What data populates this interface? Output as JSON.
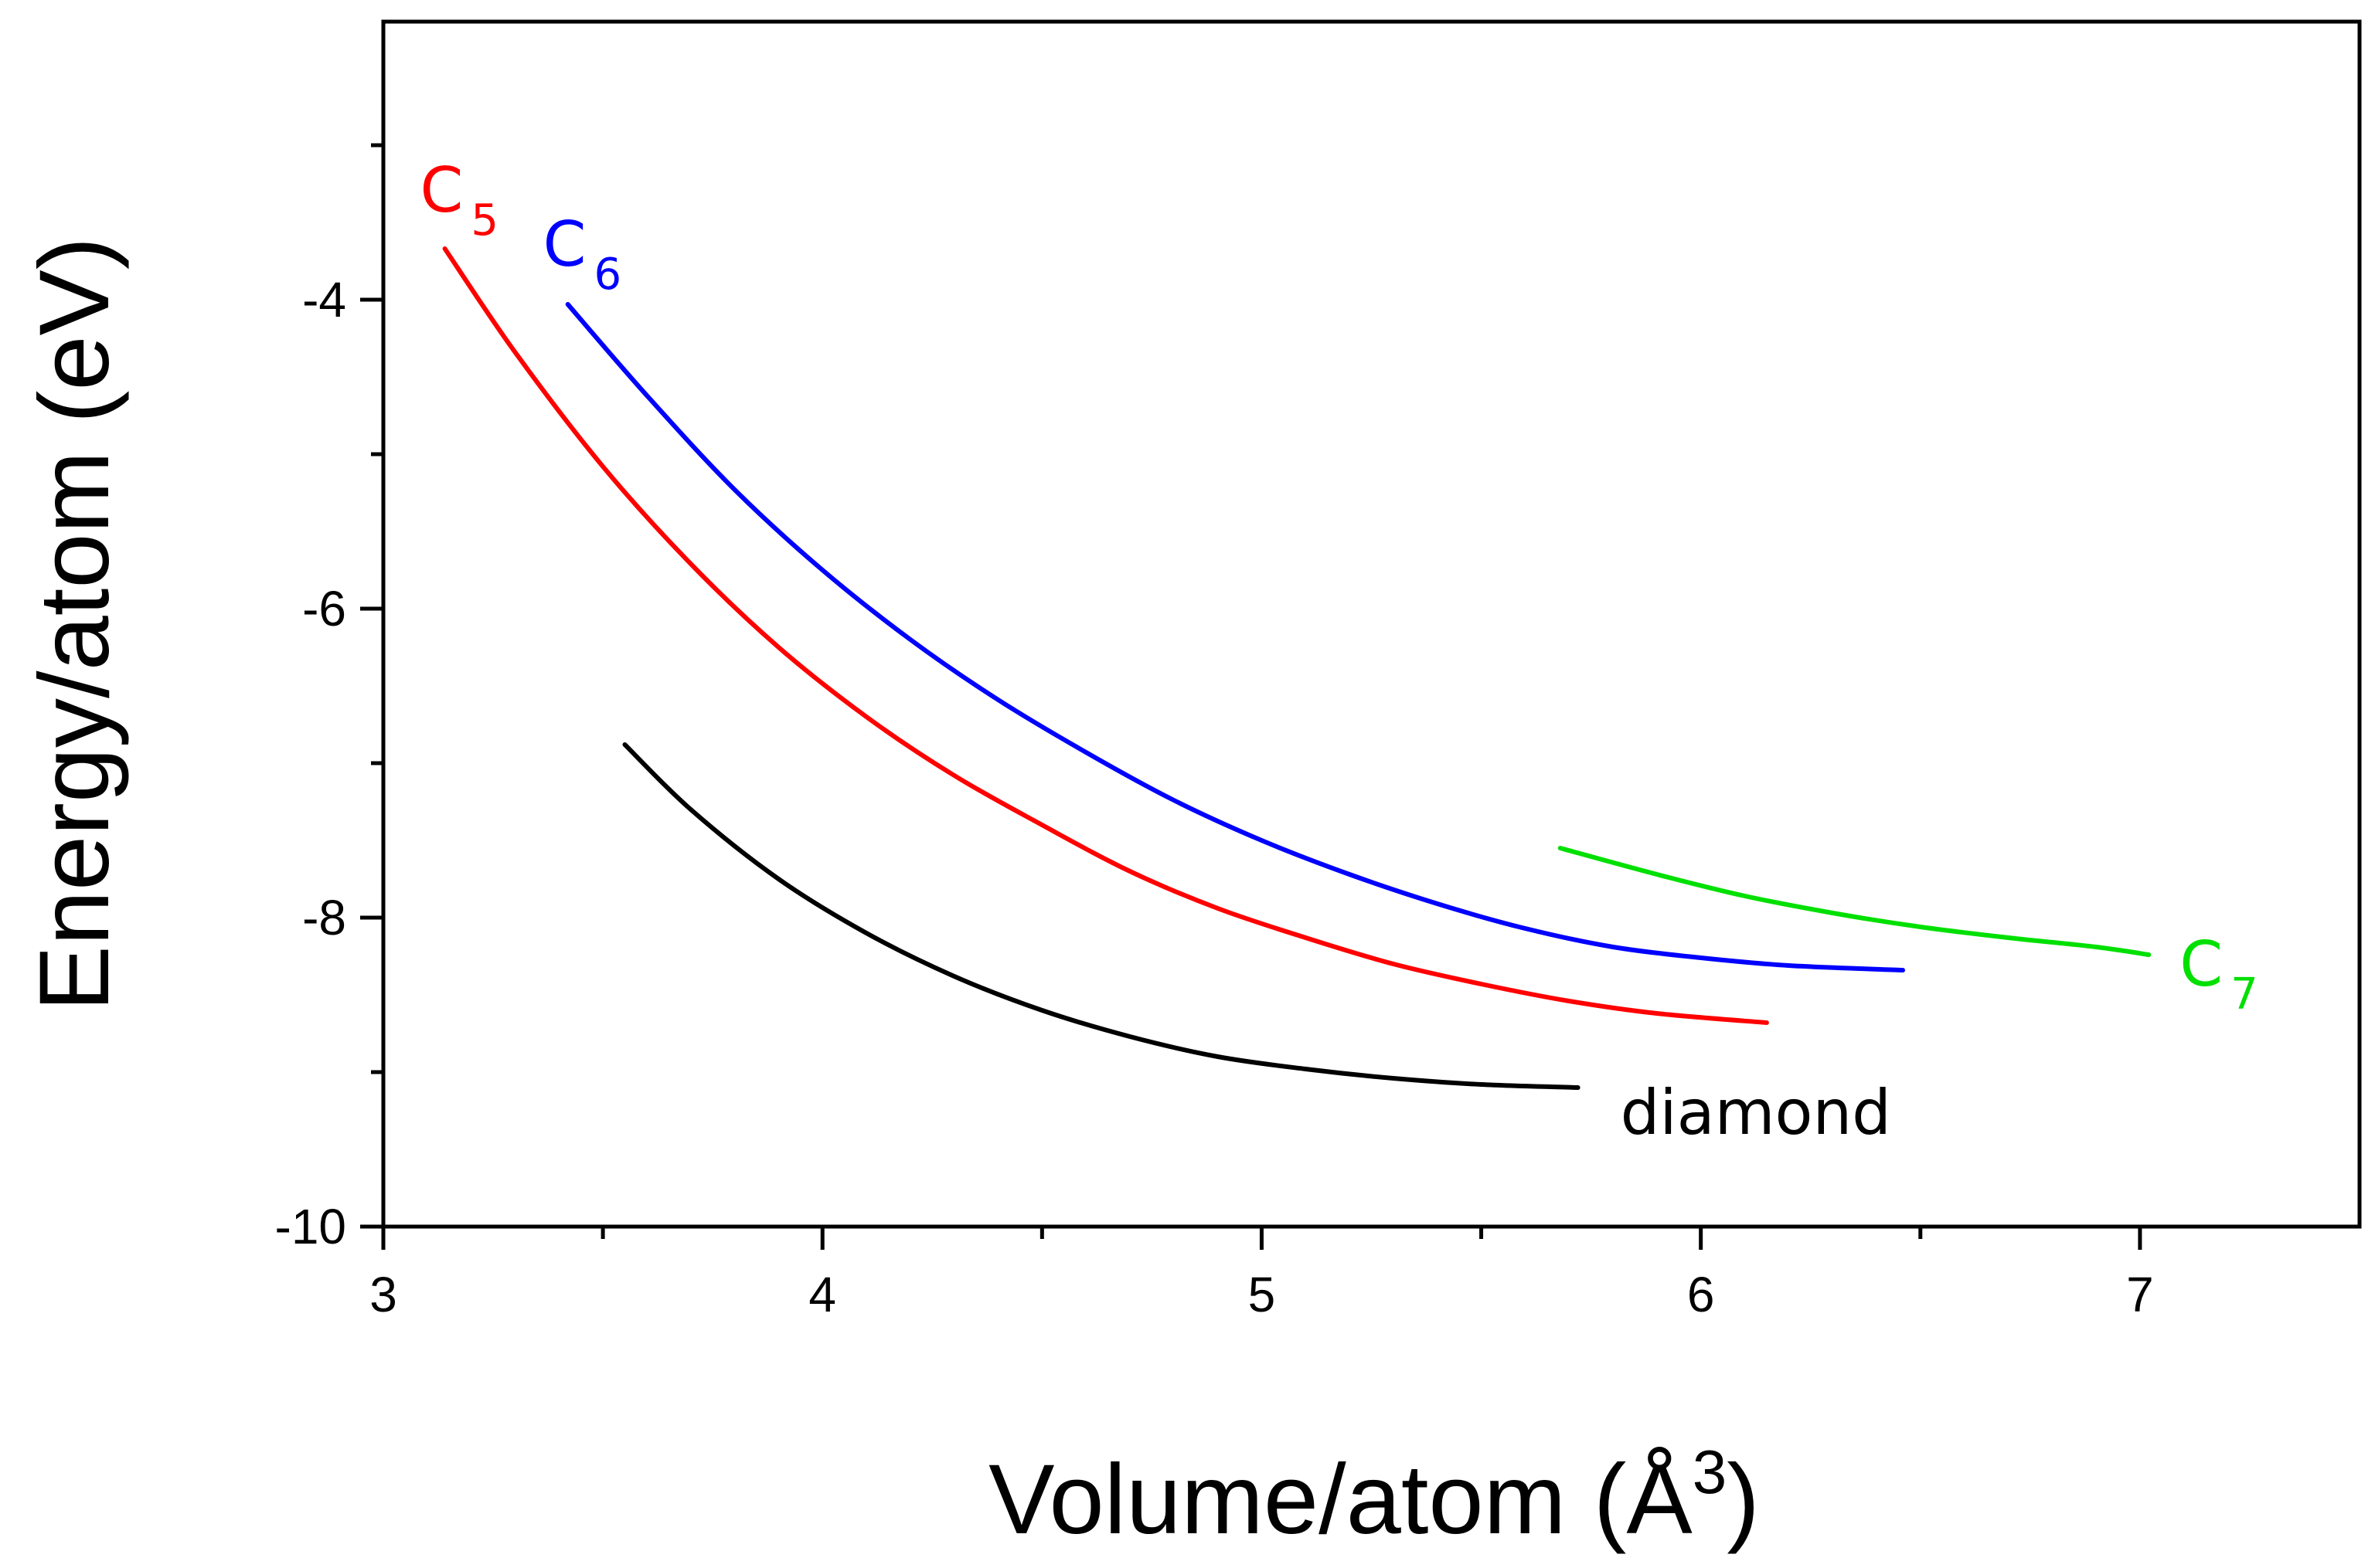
{
  "chart_data": {
    "type": "line",
    "title": "",
    "xlabel": "Volume/atom (Å³)",
    "xlabel_base": "Volume/atom (Å",
    "xlabel_sup": "3",
    "xlabel_close": ")",
    "ylabel": "Energy/atom (eV)",
    "xlim": [
      3.0,
      7.5
    ],
    "ylim": [
      -10,
      -2.2
    ],
    "xticks": [
      3,
      4,
      5,
      6,
      7
    ],
    "xtick_labels": [
      "3",
      "4",
      "5",
      "6",
      "7"
    ],
    "yticks": [
      -10,
      -8,
      -6,
      -4
    ],
    "ytick_labels": [
      "-10",
      "-8",
      "-6",
      "-4"
    ],
    "grid": false,
    "legend": "none; series labeled inline next to curves",
    "series": [
      {
        "name": "C5",
        "label_main": "C",
        "label_sub": "5",
        "color": "#ff0000",
        "x": [
          3.14,
          3.3,
          3.5,
          3.7,
          3.9,
          4.1,
          4.3,
          4.5,
          4.7,
          4.9,
          5.1,
          5.3,
          5.5,
          5.7,
          5.9,
          6.15
        ],
        "y": [
          -3.67,
          -4.34,
          -5.08,
          -5.71,
          -6.25,
          -6.7,
          -7.08,
          -7.4,
          -7.7,
          -7.94,
          -8.13,
          -8.3,
          -8.43,
          -8.54,
          -8.62,
          -8.68
        ]
      },
      {
        "name": "C6",
        "label_main": "C",
        "label_sub": "6",
        "color": "#0000ff",
        "x": [
          3.42,
          3.6,
          3.8,
          4.0,
          4.2,
          4.4,
          4.6,
          4.8,
          5.0,
          5.2,
          5.4,
          5.6,
          5.8,
          6.0,
          6.2,
          6.46
        ],
        "y": [
          -4.03,
          -4.62,
          -5.23,
          -5.75,
          -6.2,
          -6.59,
          -6.93,
          -7.24,
          -7.5,
          -7.72,
          -7.91,
          -8.07,
          -8.19,
          -8.26,
          -8.31,
          -8.34
        ]
      },
      {
        "name": "C7",
        "label_main": "C",
        "label_sub": "7",
        "color": "#00e000",
        "x": [
          5.68,
          5.9,
          6.1,
          6.3,
          6.5,
          6.7,
          6.9,
          7.02
        ],
        "y": [
          -7.55,
          -7.72,
          -7.86,
          -7.97,
          -8.06,
          -8.13,
          -8.19,
          -8.24
        ]
      },
      {
        "name": "diamond",
        "label_main": "diamond",
        "label_sub": "",
        "color": "#000000",
        "x": [
          3.55,
          3.7,
          3.9,
          4.1,
          4.3,
          4.5,
          4.7,
          4.9,
          5.1,
          5.3,
          5.5,
          5.72
        ],
        "y": [
          -6.88,
          -7.3,
          -7.75,
          -8.1,
          -8.38,
          -8.6,
          -8.77,
          -8.9,
          -8.98,
          -9.04,
          -9.08,
          -9.1
        ]
      }
    ]
  }
}
